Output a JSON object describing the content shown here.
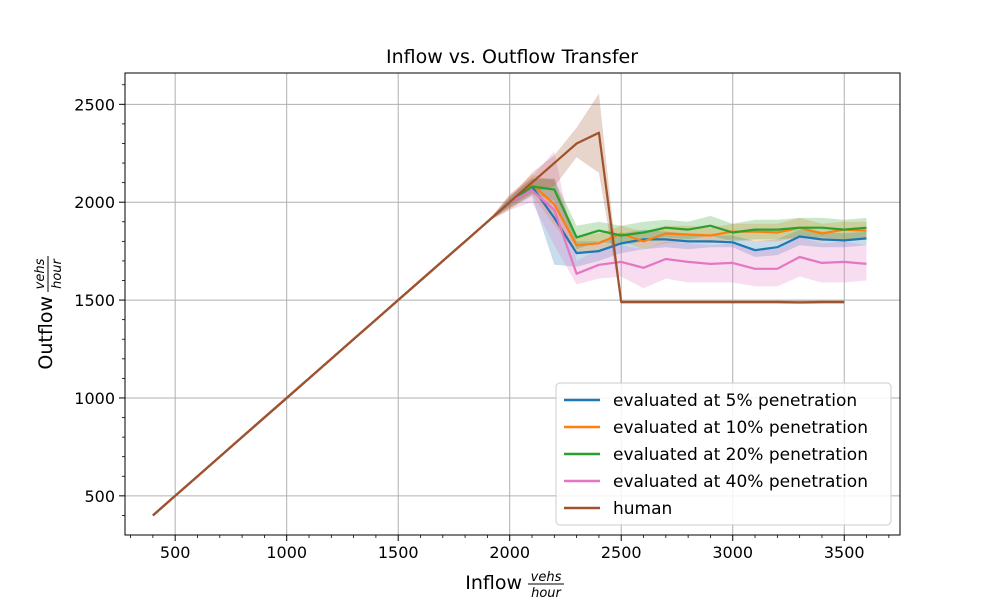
{
  "chart_data": {
    "type": "line",
    "title": "Inflow vs. Outflow Transfer",
    "xlabel": "Inflow",
    "ylabel": "Outflow",
    "unit_numerator": "vehs",
    "unit_denominator": "hour",
    "xlim": [
      275,
      3750
    ],
    "ylim": [
      300,
      2660
    ],
    "xticks": [
      500,
      1000,
      1500,
      2000,
      2500,
      3000,
      3500
    ],
    "yticks": [
      500,
      1000,
      1500,
      2000,
      2500
    ],
    "grid": true,
    "legend_position": "lower-right",
    "series": [
      {
        "name": "evaluated at 5% penetration",
        "color": "#1f77b4",
        "x": [
          400,
          500,
          600,
          700,
          800,
          900,
          1000,
          1100,
          1200,
          1300,
          1400,
          1500,
          1600,
          1700,
          1800,
          1900,
          2000,
          2100,
          2200,
          2300,
          2400,
          2500,
          2600,
          2700,
          2800,
          2900,
          3000,
          3100,
          3200,
          3300,
          3400,
          3500,
          3600
        ],
        "y": [
          400,
          500,
          600,
          700,
          800,
          900,
          1000,
          1100,
          1200,
          1300,
          1400,
          1500,
          1600,
          1700,
          1800,
          1900,
          2000,
          2080,
          1920,
          1740,
          1750,
          1790,
          1810,
          1810,
          1800,
          1800,
          1795,
          1755,
          1770,
          1825,
          1810,
          1805,
          1815
        ],
        "lower": [
          400,
          500,
          600,
          700,
          800,
          900,
          1000,
          1100,
          1200,
          1300,
          1400,
          1500,
          1600,
          1700,
          1800,
          1900,
          1970,
          2030,
          1680,
          1670,
          1700,
          1740,
          1760,
          1770,
          1760,
          1770,
          1770,
          1720,
          1730,
          1780,
          1770,
          1770,
          1780
        ],
        "upper": [
          400,
          500,
          600,
          700,
          800,
          900,
          1000,
          1100,
          1200,
          1300,
          1400,
          1500,
          1600,
          1700,
          1800,
          1900,
          2030,
          2120,
          2120,
          1800,
          1800,
          1840,
          1860,
          1850,
          1840,
          1830,
          1830,
          1800,
          1810,
          1860,
          1850,
          1840,
          1850
        ]
      },
      {
        "name": "evaluated at 10% penetration",
        "color": "#ff7f0e",
        "x": [
          400,
          500,
          600,
          700,
          800,
          900,
          1000,
          1100,
          1200,
          1300,
          1400,
          1500,
          1600,
          1700,
          1800,
          1900,
          2000,
          2100,
          2200,
          2300,
          2400,
          2500,
          2600,
          2700,
          2800,
          2900,
          3000,
          3100,
          3200,
          3300,
          3400,
          3500,
          3600
        ],
        "y": [
          400,
          500,
          600,
          700,
          800,
          900,
          1000,
          1100,
          1200,
          1300,
          1400,
          1500,
          1600,
          1700,
          1800,
          1900,
          2000,
          2090,
          1990,
          1780,
          1790,
          1840,
          1800,
          1840,
          1835,
          1830,
          1850,
          1850,
          1845,
          1870,
          1840,
          1860,
          1855
        ],
        "lower": [
          400,
          500,
          600,
          700,
          800,
          900,
          1000,
          1100,
          1200,
          1300,
          1400,
          1500,
          1600,
          1700,
          1800,
          1900,
          1960,
          2040,
          1880,
          1740,
          1750,
          1800,
          1760,
          1790,
          1800,
          1790,
          1810,
          1800,
          1800,
          1820,
          1800,
          1810,
          1810
        ],
        "upper": [
          400,
          500,
          600,
          700,
          800,
          900,
          1000,
          1100,
          1200,
          1300,
          1400,
          1500,
          1600,
          1700,
          1800,
          1900,
          2040,
          2140,
          2110,
          1830,
          1840,
          1880,
          1850,
          1880,
          1880,
          1870,
          1890,
          1890,
          1890,
          1920,
          1890,
          1900,
          1900
        ]
      },
      {
        "name": "evaluated at 20% penetration",
        "color": "#2ca02c",
        "x": [
          400,
          500,
          600,
          700,
          800,
          900,
          1000,
          1100,
          1200,
          1300,
          1400,
          1500,
          1600,
          1700,
          1800,
          1900,
          2000,
          2100,
          2200,
          2300,
          2400,
          2500,
          2600,
          2700,
          2800,
          2900,
          3000,
          3100,
          3200,
          3300,
          3400,
          3500,
          3600
        ],
        "y": [
          400,
          500,
          600,
          700,
          800,
          900,
          1000,
          1100,
          1200,
          1300,
          1400,
          1500,
          1600,
          1700,
          1800,
          1900,
          2000,
          2080,
          2065,
          1820,
          1855,
          1830,
          1845,
          1870,
          1860,
          1880,
          1845,
          1860,
          1860,
          1870,
          1870,
          1860,
          1870
        ],
        "lower": [
          400,
          500,
          600,
          700,
          800,
          900,
          1000,
          1100,
          1200,
          1300,
          1400,
          1500,
          1600,
          1700,
          1800,
          1900,
          1970,
          2040,
          2010,
          1760,
          1800,
          1780,
          1800,
          1820,
          1810,
          1830,
          1800,
          1810,
          1810,
          1820,
          1820,
          1810,
          1820
        ],
        "upper": [
          400,
          500,
          600,
          700,
          800,
          900,
          1000,
          1100,
          1200,
          1300,
          1400,
          1500,
          1600,
          1700,
          1800,
          1900,
          2030,
          2120,
          2120,
          1880,
          1900,
          1880,
          1900,
          1910,
          1900,
          1930,
          1890,
          1910,
          1910,
          1920,
          1920,
          1910,
          1920
        ]
      },
      {
        "name": "evaluated at 40% penetration",
        "color": "#e377c2",
        "x": [
          400,
          500,
          600,
          700,
          800,
          900,
          1000,
          1100,
          1200,
          1300,
          1400,
          1500,
          1600,
          1700,
          1800,
          1900,
          2000,
          2100,
          2200,
          2300,
          2400,
          2500,
          2600,
          2700,
          2800,
          2900,
          3000,
          3100,
          3200,
          3300,
          3400,
          3500,
          3600
        ],
        "y": [
          400,
          500,
          600,
          700,
          800,
          900,
          1000,
          1100,
          1200,
          1300,
          1400,
          1500,
          1600,
          1700,
          1800,
          1900,
          2000,
          2060,
          1960,
          1635,
          1680,
          1695,
          1665,
          1710,
          1695,
          1685,
          1690,
          1660,
          1660,
          1720,
          1690,
          1695,
          1685
        ],
        "lower": [
          400,
          500,
          600,
          700,
          800,
          900,
          1000,
          1100,
          1200,
          1300,
          1400,
          1500,
          1600,
          1700,
          1800,
          1900,
          1960,
          2000,
          1780,
          1580,
          1610,
          1620,
          1560,
          1610,
          1590,
          1590,
          1590,
          1570,
          1570,
          1620,
          1590,
          1590,
          1600
        ],
        "upper": [
          400,
          500,
          600,
          700,
          800,
          900,
          1000,
          1100,
          1200,
          1300,
          1400,
          1500,
          1600,
          1700,
          1800,
          1900,
          2040,
          2130,
          2260,
          1700,
          1760,
          1780,
          1760,
          1800,
          1790,
          1780,
          1790,
          1760,
          1760,
          1820,
          1790,
          1800,
          1780
        ]
      },
      {
        "name": "human",
        "color": "#a0522d",
        "x": [
          400,
          500,
          600,
          700,
          800,
          900,
          1000,
          1100,
          1200,
          1300,
          1400,
          1500,
          1600,
          1700,
          1800,
          1900,
          2000,
          2100,
          2200,
          2300,
          2400,
          2500,
          2600,
          2700,
          2800,
          2900,
          3000,
          3100,
          3200,
          3300,
          3400,
          3500
        ],
        "y": [
          400,
          500,
          600,
          700,
          800,
          900,
          1000,
          1100,
          1200,
          1300,
          1400,
          1500,
          1600,
          1700,
          1800,
          1900,
          2000,
          2100,
          2200,
          2300,
          2355,
          1490,
          1490,
          1490,
          1490,
          1490,
          1490,
          1490,
          1490,
          1488,
          1490,
          1490
        ],
        "lower": [
          400,
          500,
          600,
          700,
          800,
          900,
          1000,
          1100,
          1200,
          1300,
          1400,
          1500,
          1600,
          1700,
          1800,
          1900,
          1980,
          2050,
          2080,
          2230,
          2150,
          1480,
          1480,
          1480,
          1480,
          1480,
          1480,
          1480,
          1480,
          1480,
          1480,
          1480
        ],
        "upper": [
          400,
          500,
          600,
          700,
          800,
          900,
          1000,
          1100,
          1200,
          1300,
          1400,
          1500,
          1600,
          1700,
          1800,
          1900,
          2020,
          2150,
          2240,
          2380,
          2555,
          1500,
          1500,
          1500,
          1500,
          1500,
          1500,
          1500,
          1500,
          1500,
          1500,
          1500
        ]
      }
    ]
  }
}
